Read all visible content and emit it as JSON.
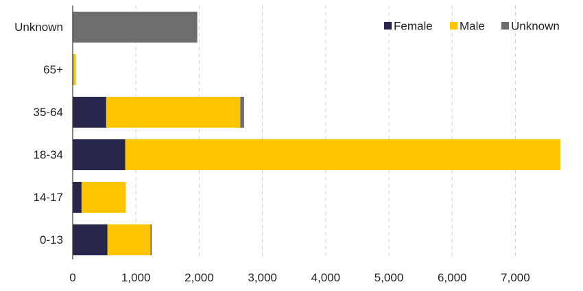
{
  "chart_data": {
    "type": "bar",
    "orientation": "horizontal",
    "stacked": true,
    "categories": [
      "Unknown",
      "65+",
      "35-64",
      "18-34",
      "14-17",
      "0-13"
    ],
    "series": [
      {
        "name": "Female",
        "color": "#26264d",
        "values": [
          0,
          10,
          530,
          830,
          140,
          550
        ]
      },
      {
        "name": "Male",
        "color": "#ffc400",
        "values": [
          0,
          40,
          2120,
          6880,
          700,
          680
        ]
      },
      {
        "name": "Unknown",
        "color": "#6e6e6e",
        "values": [
          1970,
          0,
          60,
          0,
          0,
          20
        ]
      }
    ],
    "xlim": [
      0,
      7700
    ],
    "xticks": [
      0,
      1000,
      2000,
      3000,
      4000,
      5000,
      6000,
      7000
    ],
    "xtick_labels": [
      "0",
      "1,000",
      "2,000",
      "3,000",
      "4,000",
      "5,000",
      "6,000",
      "7,000"
    ],
    "grid": "vertical-dashed",
    "legend_position": "top-right",
    "title": "",
    "xlabel": "",
    "ylabel": ""
  }
}
